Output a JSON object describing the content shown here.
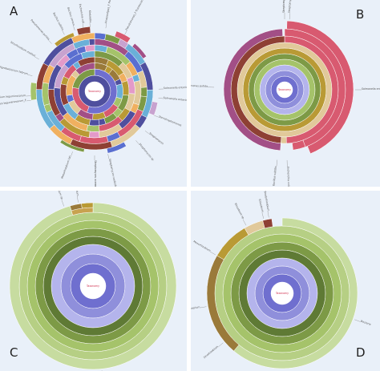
{
  "colors": {
    "background": "#e9f0f9",
    "center": "#ffffff",
    "center_text": "#d0304f",
    "blues": [
      "#4f4f9e",
      "#6f6fcf",
      "#8f8fdb",
      "#b4b4ec"
    ],
    "greens": [
      "#5f7a35",
      "#7d9a46",
      "#a5c36a",
      "#c7dca0"
    ],
    "accents": [
      "#b99a35",
      "#e1c99a",
      "#d85a70",
      "#a24f86",
      "#8e4034",
      "#6ab0d8",
      "#9a7a3a"
    ]
  },
  "panels": [
    {
      "letter": "A",
      "root": "Taxonomy",
      "labels": [
        "Anaerostipes_F Pseudomonas",
        "Pseudomonas_F fluorescens",
        "Salmonella enterica",
        "Salmonella enterica_B",
        "Stenotrophomonas",
        "Streptomyces",
        "Streptomyces sp.",
        "Streptomyces coelicolor",
        "Streptomyces avermitilis",
        "Mesorhizobium loti",
        "Rhizobium leguminosarum_F",
        "Rhizobium leguminosarum",
        "Agrobacterium fabrum",
        "Sinorhizobium meliloti",
        "Pseudomonas putida",
        "Bacillus subtilis",
        "Bacillus cereus",
        "Escherichia coli",
        "Klebsiella"
      ]
    },
    {
      "letter": "B",
      "root": "Taxonomy",
      "labels": [
        "Streptomyces sp.",
        "Streptomyces",
        "Salmonella enterica",
        "Escherichia coli",
        "Bacillus subtilis",
        "Pseudomonas putida"
      ]
    },
    {
      "letter": "C",
      "root": "Taxonomy",
      "labels": [
        "Rhizobium sp.",
        "Rhizobium",
        "Bacteria"
      ]
    },
    {
      "letter": "D",
      "root": "Taxonomy",
      "labels": [
        "Rhizobium sp.",
        "Rhizobium",
        "Bradyrhizobium",
        "Mesorhizobium",
        "Agrobacterium",
        "Sinorhizobium",
        "Bacteria"
      ]
    }
  ]
}
